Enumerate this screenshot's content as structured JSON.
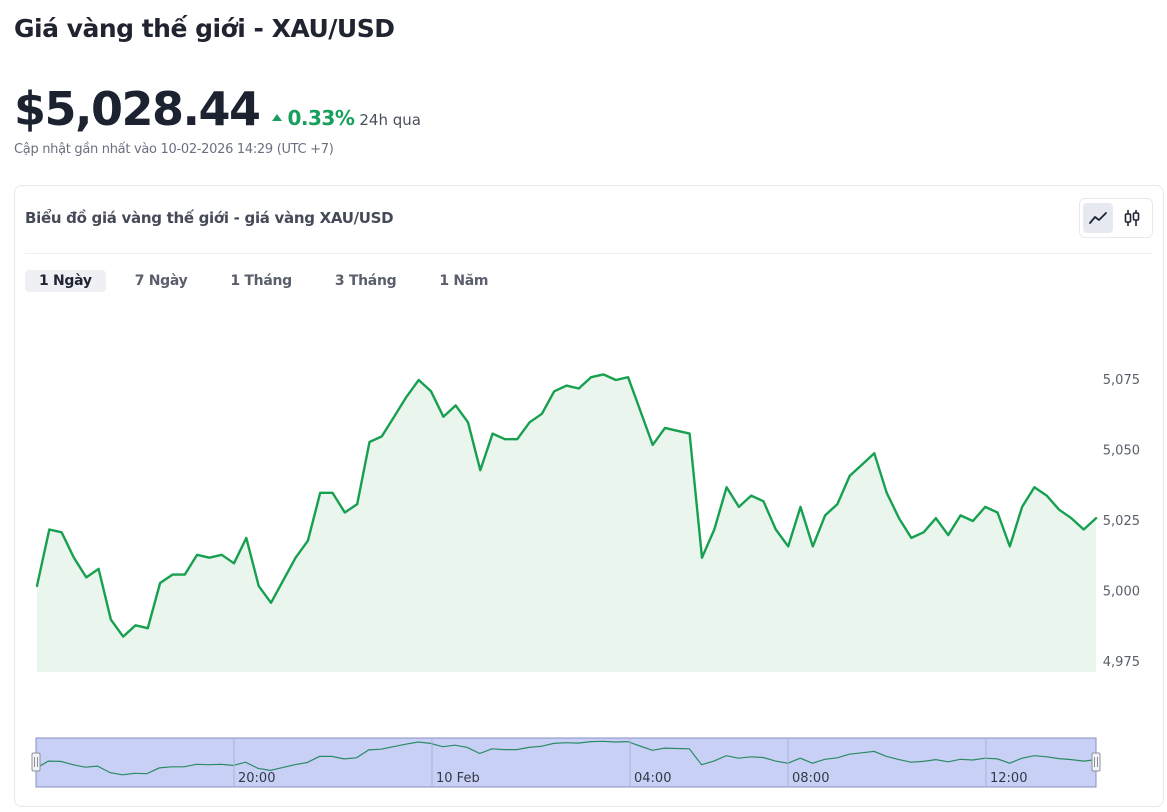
{
  "page": {
    "title": "Giá vàng thế giới - XAU/USD"
  },
  "quote": {
    "price": "$5,028.44",
    "change_pct": "0.33%",
    "change_period": "24h qua",
    "updated": "Cập nhật gần nhất vào 10-02-2026 14:29 (UTC +7)"
  },
  "card": {
    "title": "Biểu đồ giá vàng thế giới - giá vàng XAU/USD",
    "view_toggles": [
      {
        "icon": "line-chart-icon",
        "active": true
      },
      {
        "icon": "candlestick-chart-icon",
        "active": false
      }
    ],
    "tabs": [
      {
        "label": "1 Ngày",
        "active": true
      },
      {
        "label": "7 Ngày",
        "active": false
      },
      {
        "label": "1 Tháng",
        "active": false
      },
      {
        "label": "3 Tháng",
        "active": false
      },
      {
        "label": "1 Năm",
        "active": false
      }
    ]
  },
  "colors": {
    "line": "#17a04f",
    "area": "#eaf5ee",
    "up": "#17a05d",
    "navigator_fill": "#c8d1f5",
    "navigator_border": "#8790c0"
  },
  "chart_data": {
    "type": "area",
    "title": "",
    "xlabel": "",
    "ylabel": "",
    "ylim": [
      4975,
      5075
    ],
    "yticks": [
      4975,
      5000,
      5025,
      5050,
      5075
    ],
    "ytick_labels": [
      "4,975",
      "5,000",
      "5,025",
      "5,050",
      "5,075"
    ],
    "grid": false,
    "legend": "none",
    "values": [
      5002,
      5022,
      5021,
      5012,
      5005,
      5008,
      4990,
      4984,
      4988,
      4987,
      5003,
      5006,
      5006,
      5013,
      5012,
      5013,
      5010,
      5019,
      5002,
      4996,
      5004,
      5012,
      5018,
      5035,
      5035,
      5028,
      5031,
      5053,
      5055,
      5062,
      5069,
      5075,
      5071,
      5062,
      5066,
      5060,
      5043,
      5056,
      5054,
      5054,
      5060,
      5063,
      5071,
      5073,
      5072,
      5076,
      5077,
      5075,
      5076,
      5064,
      5052,
      5058,
      5057,
      5056,
      5012,
      5022,
      5037,
      5030,
      5034,
      5032,
      5022,
      5016,
      5030,
      5016,
      5027,
      5031,
      5041,
      5045,
      5049,
      5035,
      5026,
      5019,
      5021,
      5026,
      5020,
      5027,
      5025,
      5030,
      5028,
      5016,
      5030,
      5037,
      5034,
      5029,
      5026,
      5022,
      5026
    ],
    "x_start_label": "",
    "navigator": {
      "labels": [
        "20:00",
        "10 Feb",
        "04:00",
        "08:00",
        "12:00"
      ]
    }
  }
}
